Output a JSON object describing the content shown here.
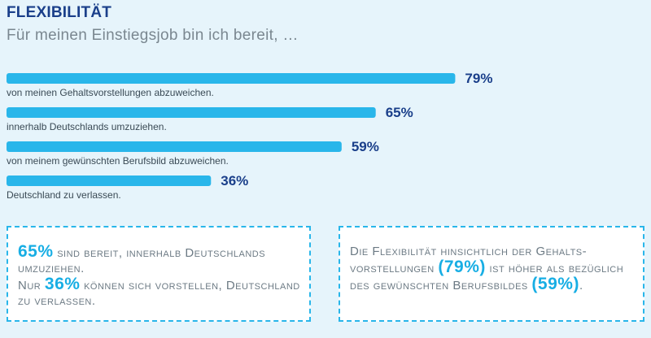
{
  "header": {
    "title": "FLEXIBILITÄT",
    "subtitle": "Für meinen Einstiegsjob bin ich bereit, …"
  },
  "chart_data": {
    "type": "bar",
    "orientation": "horizontal",
    "categories": [
      "von meinen Gehaltsvorstellungen abzuweichen.",
      "innerhalb Deutschlands umzuziehen.",
      "von meinem gewünschten Berufsbild abzuweichen.",
      "Deutschland zu verlassen."
    ],
    "values": [
      79,
      65,
      59,
      36
    ],
    "value_labels": [
      "79%",
      "65%",
      "59%",
      "36%"
    ],
    "bar_color": "#29b6ea",
    "xlim": [
      0,
      100
    ]
  },
  "boxes": {
    "left": {
      "line1_value": "65%",
      "line1_text": " sind bereit, innerhalb Deutschlands umzuziehen.",
      "line2_prefix": "Nur ",
      "line2_value": "36%",
      "line2_text": " können sich vorstellen, Deutschland zu verlassen."
    },
    "right": {
      "text_before": "Die Flexibilität hinsichtlich der Gehalts­vorstellungen ",
      "value1": "(79%)",
      "text_middle": " ist höher als bezüglich des gewünschten Berufsbildes ",
      "value2": "(59%)",
      "text_after": "."
    }
  },
  "colors": {
    "background": "#e6f4fb",
    "accent": "#29b6ea",
    "title": "#1a3f8a"
  }
}
